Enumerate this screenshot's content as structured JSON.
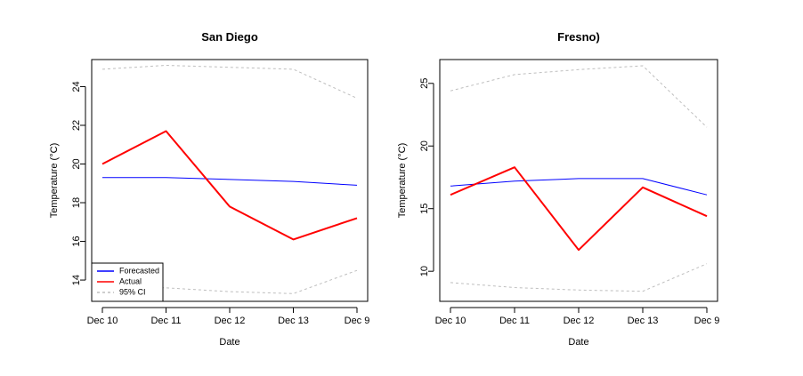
{
  "chart_data": [
    {
      "type": "line",
      "title": "San Diego",
      "xlabel": "Date",
      "ylabel": "Temperature (°C)",
      "categories": [
        "Dec 10",
        "Dec 11",
        "Dec 12",
        "Dec 13",
        "Dec 9"
      ],
      "ylim": [
        12.9,
        25.4
      ],
      "yticks": [
        14,
        16,
        18,
        20,
        22,
        24
      ],
      "grid": false,
      "legend": {
        "placement": "bottom-left",
        "entries": [
          {
            "label": "Forecasted",
            "color": "#0000ff",
            "style": "solid"
          },
          {
            "label": "Actual",
            "color": "#ff0000",
            "style": "solid"
          },
          {
            "label": "95% CI",
            "color": "#bebebe",
            "style": "dashed"
          }
        ]
      },
      "series": [
        {
          "name": "Forecasted",
          "color": "#0000ff",
          "width": 1,
          "dash": "none",
          "values": [
            19.3,
            19.3,
            19.2,
            19.1,
            18.9
          ]
        },
        {
          "name": "Actual",
          "color": "#ff0000",
          "width": 2,
          "dash": "none",
          "values": [
            20.0,
            21.7,
            17.8,
            16.1,
            17.2
          ]
        },
        {
          "name": "95% CI",
          "color": "#bebebe",
          "width": 1,
          "dash": "3,3",
          "values": [
            24.9,
            25.1,
            25.0,
            24.9,
            23.4
          ]
        },
        {
          "name": "95% CI",
          "color": "#bebebe",
          "width": 1,
          "dash": "3,3",
          "values": [
            13.7,
            13.6,
            13.4,
            13.3,
            14.5
          ]
        }
      ]
    },
    {
      "type": "line",
      "title": "Fresno)",
      "xlabel": "Date",
      "ylabel": "Temperature (°C)",
      "categories": [
        "Dec 10",
        "Dec 11",
        "Dec 12",
        "Dec 13",
        "Dec 9"
      ],
      "ylim": [
        7.6,
        26.9
      ],
      "yticks": [
        10,
        15,
        20,
        25
      ],
      "grid": false,
      "legend": null,
      "series": [
        {
          "name": "Forecasted",
          "color": "#0000ff",
          "width": 1,
          "dash": "none",
          "values": [
            16.8,
            17.2,
            17.4,
            17.4,
            16.1
          ]
        },
        {
          "name": "Actual",
          "color": "#ff0000",
          "width": 2,
          "dash": "none",
          "values": [
            16.1,
            18.3,
            11.7,
            16.7,
            14.4
          ]
        },
        {
          "name": "95% CI",
          "color": "#bebebe",
          "width": 1,
          "dash": "3,3",
          "values": [
            24.4,
            25.7,
            26.1,
            26.4,
            21.5
          ]
        },
        {
          "name": "95% CI",
          "color": "#bebebe",
          "width": 1,
          "dash": "3,3",
          "values": [
            9.1,
            8.7,
            8.5,
            8.4,
            10.6
          ]
        }
      ]
    }
  ]
}
